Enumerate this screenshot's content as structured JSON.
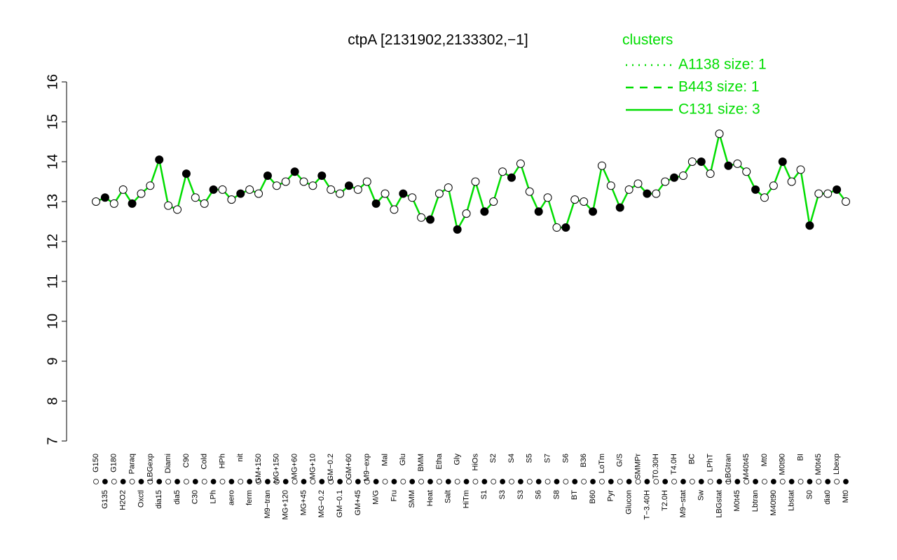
{
  "chart_data": {
    "type": "line",
    "title": "ctpA [2131902,2133302,−1]",
    "color": "#00dd00",
    "categories": [
      "G150",
      "G135",
      "G180",
      "H2O2",
      "Paraq",
      "Oxctl",
      "LBGexp",
      "dia15",
      "Diami",
      "dia5",
      "C90",
      "C30",
      "Cold",
      "LPh",
      "HPh",
      "aero",
      "nit",
      "ferm",
      "GM+150",
      "M9−tran",
      "MG+150",
      "MG+120",
      "MG+60",
      "MG+45",
      "MG+10",
      "MG−0.2",
      "GM−0.2",
      "GM−0.1",
      "GM+60",
      "GM+45",
      "M9−exp",
      "M/G",
      "Mal",
      "Fru",
      "Glu",
      "SMM",
      "BMM",
      "Heat",
      "Etha",
      "Salt",
      "Gly",
      "HiTm",
      "HiOs",
      "S1",
      "S2",
      "S3",
      "S4",
      "S3",
      "S5",
      "S6",
      "S7",
      "S8",
      "S6",
      "BT",
      "B36",
      "B60",
      "LoTm",
      "Pyr",
      "G/S",
      "Glucon",
      "SMMPr",
      "T−3.40H",
      "T0.30H",
      "T2.0H",
      "T4.0H",
      "M9−stat",
      "BC",
      "Sw",
      "LPhT",
      "LBGstat",
      "LBGtran",
      "M0t45",
      "M40t45",
      "Lbtran",
      "Mt0",
      "M40t90",
      "M0t90",
      "Lbstat",
      "BI",
      "S0",
      "M0t45",
      "dia0",
      "Lbexp",
      "Mt0"
    ],
    "values": [
      13.0,
      13.1,
      12.95,
      13.3,
      12.95,
      13.2,
      13.4,
      14.05,
      12.9,
      12.8,
      13.7,
      13.1,
      12.95,
      13.3,
      13.3,
      13.05,
      13.2,
      13.3,
      13.2,
      13.65,
      13.4,
      13.5,
      13.75,
      13.5,
      13.4,
      13.65,
      13.3,
      13.2,
      13.4,
      13.3,
      13.5,
      12.95,
      13.2,
      12.8,
      13.2,
      13.1,
      12.6,
      12.55,
      13.2,
      13.35,
      12.3,
      12.7,
      13.5,
      12.75,
      13.0,
      13.75,
      13.6,
      13.95,
      13.25,
      12.75,
      13.1,
      12.35,
      12.35,
      13.05,
      13.0,
      12.75,
      13.9,
      13.4,
      12.85,
      13.3,
      13.45,
      13.2,
      13.2,
      13.5,
      13.6,
      13.65,
      14.0,
      14.0,
      13.7,
      14.7,
      13.9,
      13.95,
      13.75,
      13.3,
      13.1,
      13.4,
      14.0,
      13.5,
      13.8,
      12.4,
      13.2,
      13.2,
      13.3,
      13.0
    ],
    "ylim": [
      7,
      16
    ],
    "yticks": [
      7,
      8,
      9,
      10,
      11,
      12,
      13,
      14,
      15,
      16
    ],
    "legend": {
      "title": "clusters",
      "position": "top-right",
      "entries": [
        {
          "name": "A1138 size: 1",
          "dash": "dotted"
        },
        {
          "name": "B443 size: 1",
          "dash": "dashed"
        },
        {
          "name": "C131 size: 3",
          "dash": "solid"
        }
      ]
    }
  }
}
